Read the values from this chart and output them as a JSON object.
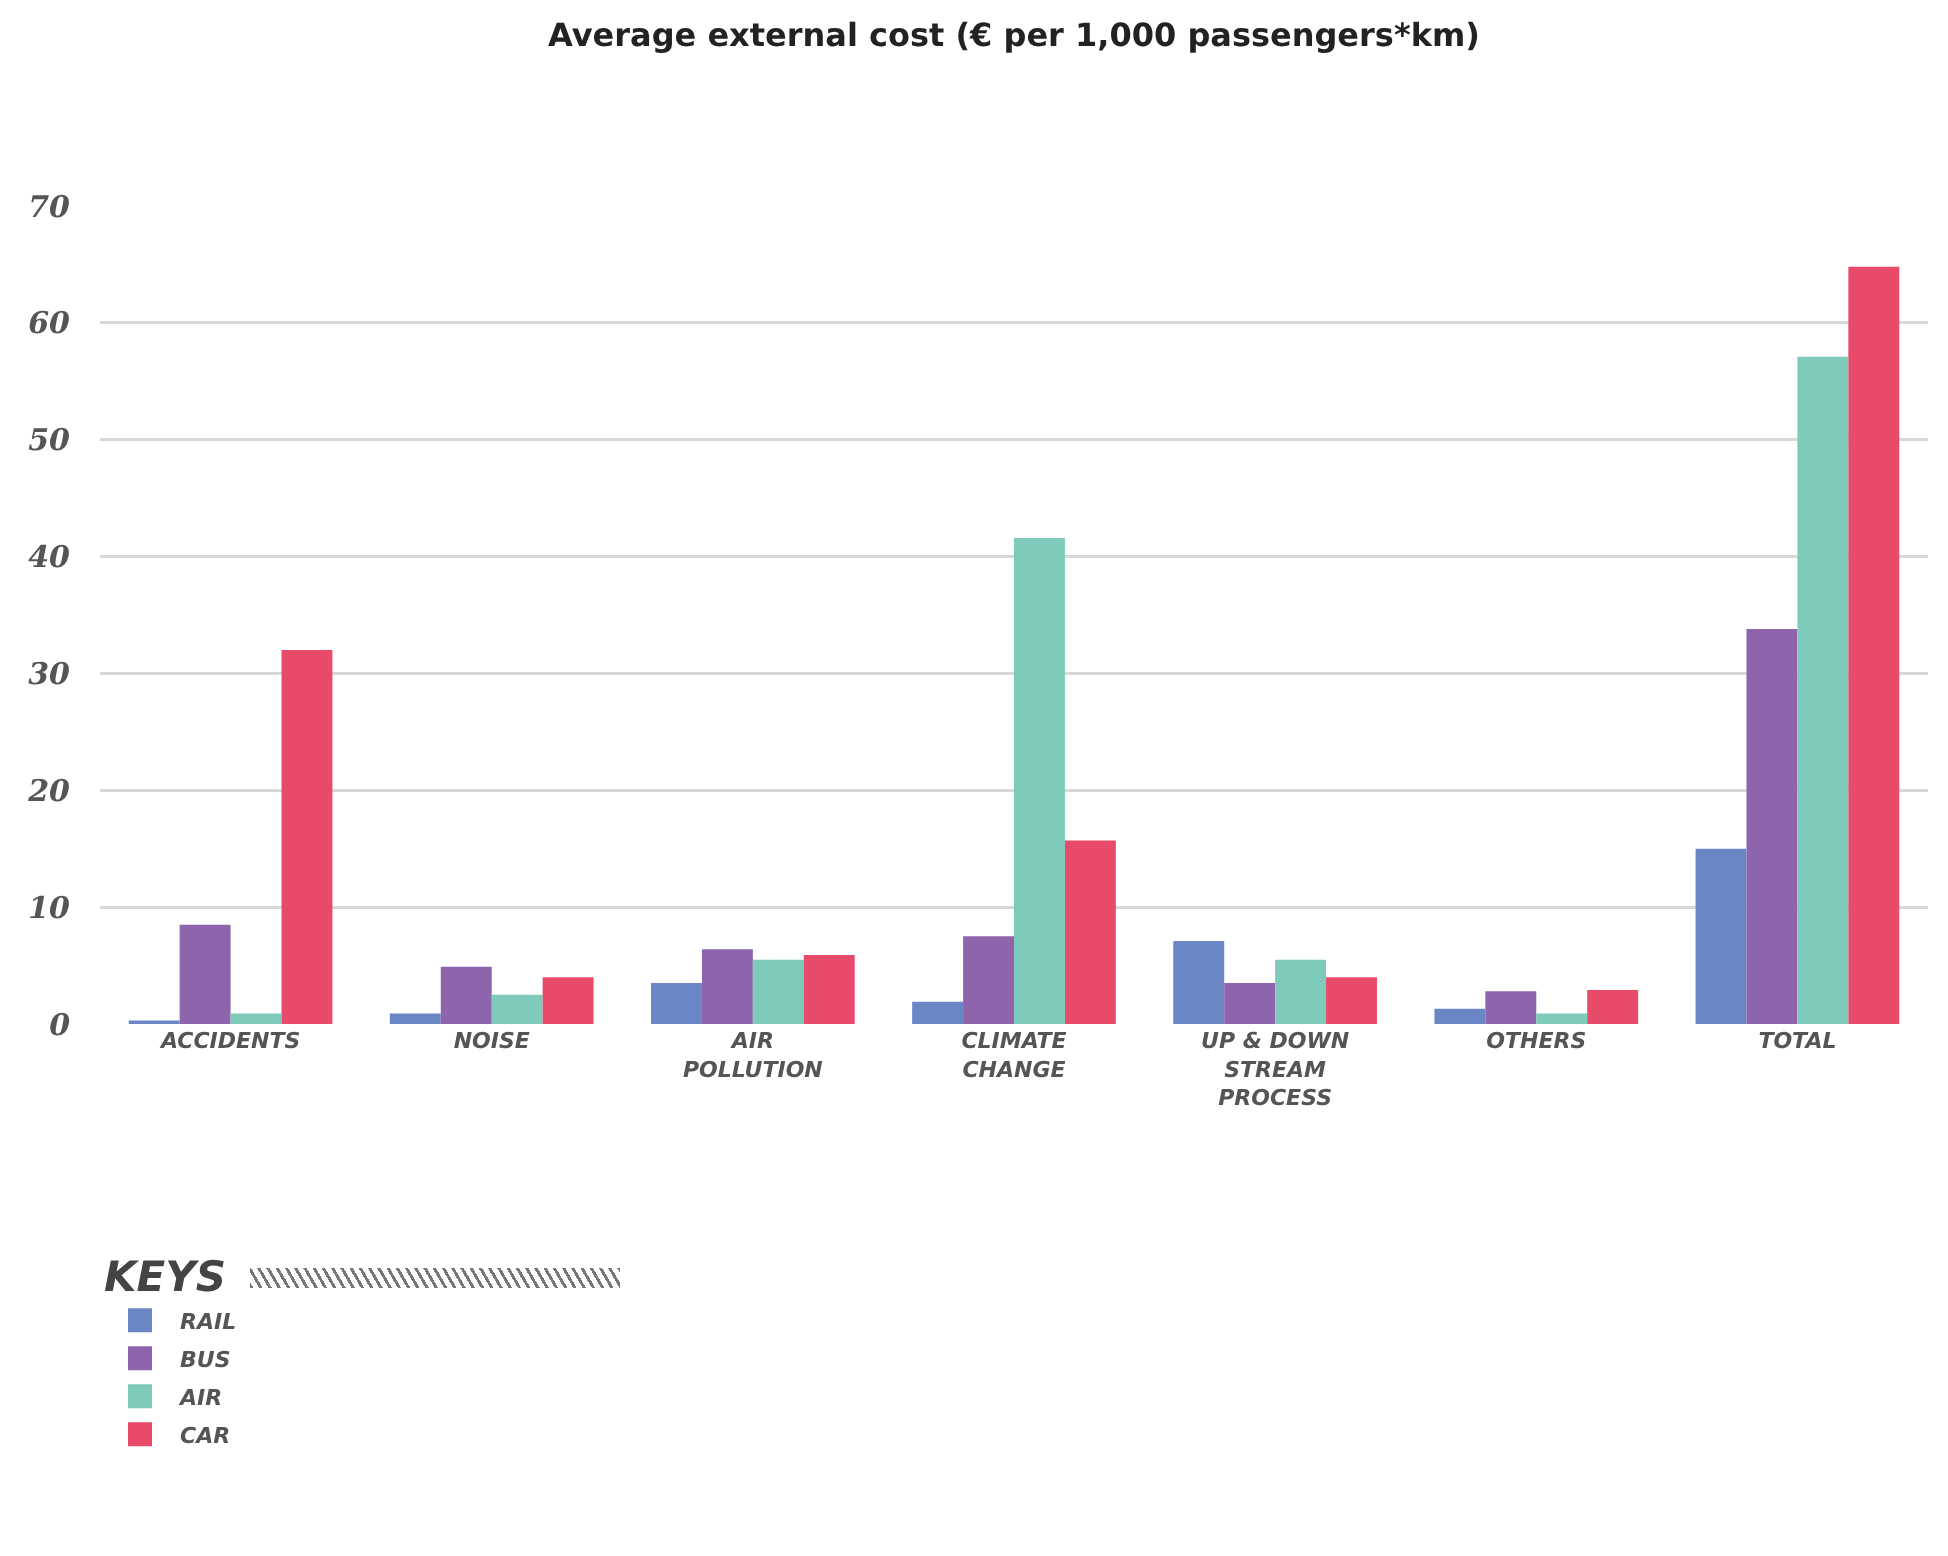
{
  "chart_data": {
    "type": "bar",
    "title": "Average external cost (€ per 1,000 passengers*km)",
    "categories": [
      "ACCIDENTS",
      "NOISE",
      "AIR POLLUTION",
      "CLIMATE CHANGE",
      "UP & DOWN STREAM PROCESS",
      "OTHERS",
      "TOTAL"
    ],
    "series": [
      {
        "name": "RAIL",
        "color": "#6a86c4",
        "values": [
          0.3,
          0.9,
          3.5,
          1.9,
          7.1,
          1.3,
          15.0
        ]
      },
      {
        "name": "BUS",
        "color": "#8e64ad",
        "values": [
          8.5,
          4.9,
          6.4,
          7.5,
          3.5,
          2.8,
          33.8
        ]
      },
      {
        "name": "AIR",
        "color": "#7ecbbc",
        "values": [
          0.9,
          2.5,
          5.5,
          41.6,
          5.5,
          0.9,
          57.1
        ]
      },
      {
        "name": "CAR",
        "color": "#e84a6a",
        "values": [
          32.0,
          4.0,
          5.9,
          15.7,
          4.0,
          2.9,
          64.8
        ]
      }
    ],
    "legend_title": "KEYS",
    "ylim": [
      0,
      70
    ],
    "yticks": [
      0,
      10,
      20,
      30,
      40,
      50,
      60,
      70
    ],
    "grid": "y",
    "legend": "bottom left"
  }
}
